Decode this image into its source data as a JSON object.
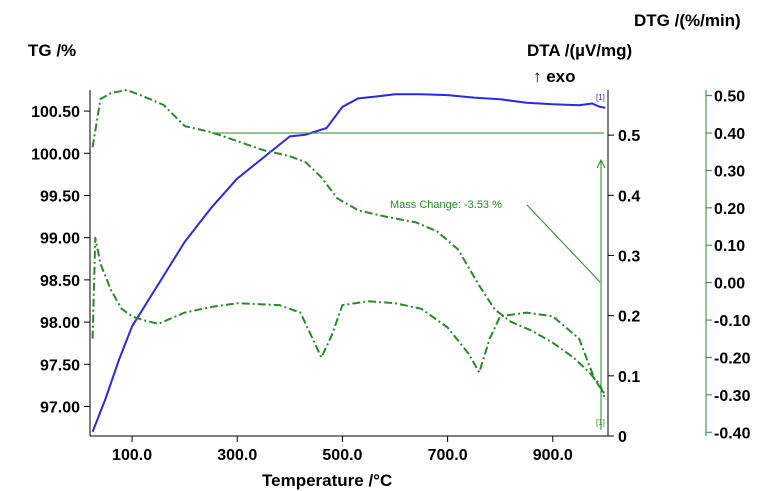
{
  "chart_data": {
    "type": "line",
    "title": "",
    "xlabel": "Temperature /°C",
    "xlim": [
      20,
      1005
    ],
    "x_ticks": [
      100,
      300,
      500,
      700,
      900
    ],
    "x_tick_labels": [
      "100.0",
      "300.0",
      "500.0",
      "700.0",
      "900.0"
    ],
    "y_axes": {
      "tg": {
        "label": "TG /%",
        "lim": [
          96.65,
          100.75
        ],
        "ticks": [
          97.0,
          97.5,
          98.0,
          98.5,
          99.0,
          99.5,
          100.0,
          100.5
        ],
        "tick_labels": [
          "97.00",
          "97.50",
          "98.00",
          "98.50",
          "99.00",
          "99.50",
          "100.00",
          "100.50"
        ]
      },
      "dta": {
        "label": "DTA /(µV/mg)",
        "label_sub": "↑ exo",
        "lim": [
          0,
          0.575
        ],
        "ticks": [
          0,
          0.1,
          0.2,
          0.3,
          0.4,
          0.5
        ],
        "tick_labels": [
          "0",
          "0.1",
          "0.2",
          "0.3",
          "0.4",
          "0.5"
        ]
      },
      "dtg": {
        "label": "DTG /(%/min)",
        "lim": [
          -0.41,
          0.515
        ],
        "ticks": [
          -0.4,
          -0.3,
          -0.2,
          -0.1,
          0.0,
          0.1,
          0.2,
          0.3,
          0.4,
          0.5
        ],
        "tick_labels": [
          "-0.40",
          "-0.30",
          "-0.20",
          "-0.10",
          "0.00",
          "0.10",
          "0.20",
          "0.30",
          "0.40",
          "0.50"
        ]
      }
    },
    "series": [
      {
        "key": "tg",
        "axis": "tg",
        "color": "#2a2ae0",
        "style": "solid",
        "points": [
          [
            25,
            96.7
          ],
          [
            50,
            97.1
          ],
          [
            75,
            97.55
          ],
          [
            100,
            97.95
          ],
          [
            150,
            98.45
          ],
          [
            200,
            98.95
          ],
          [
            250,
            99.35
          ],
          [
            300,
            99.7
          ],
          [
            350,
            99.95
          ],
          [
            400,
            100.2
          ],
          [
            430,
            100.22
          ],
          [
            470,
            100.3
          ],
          [
            500,
            100.55
          ],
          [
            530,
            100.65
          ],
          [
            560,
            100.67
          ],
          [
            600,
            100.7
          ],
          [
            650,
            100.7
          ],
          [
            700,
            100.69
          ],
          [
            750,
            100.66
          ],
          [
            800,
            100.64
          ],
          [
            850,
            100.6
          ],
          [
            900,
            100.58
          ],
          [
            950,
            100.57
          ],
          [
            975,
            100.59
          ],
          [
            990,
            100.55
          ],
          [
            1000,
            100.54
          ]
        ]
      },
      {
        "key": "dta",
        "axis": "dta",
        "color": "#2a8a2a",
        "style": "dashdot",
        "points": [
          [
            25,
            0.48
          ],
          [
            40,
            0.56
          ],
          [
            60,
            0.57
          ],
          [
            90,
            0.575
          ],
          [
            120,
            0.565
          ],
          [
            160,
            0.55
          ],
          [
            200,
            0.515
          ],
          [
            250,
            0.505
          ],
          [
            300,
            0.49
          ],
          [
            350,
            0.475
          ],
          [
            400,
            0.465
          ],
          [
            430,
            0.455
          ],
          [
            460,
            0.43
          ],
          [
            490,
            0.395
          ],
          [
            530,
            0.375
          ],
          [
            580,
            0.365
          ],
          [
            640,
            0.355
          ],
          [
            680,
            0.34
          ],
          [
            720,
            0.31
          ],
          [
            760,
            0.25
          ],
          [
            790,
            0.21
          ],
          [
            820,
            0.19
          ],
          [
            860,
            0.175
          ],
          [
            900,
            0.155
          ],
          [
            940,
            0.13
          ],
          [
            970,
            0.105
          ],
          [
            990,
            0.085
          ],
          [
            1000,
            0.06
          ]
        ]
      },
      {
        "key": "dtg",
        "axis": "dtg",
        "color": "#2a8a2a",
        "style": "dashdot",
        "points": [
          [
            25,
            -0.15
          ],
          [
            30,
            0.12
          ],
          [
            40,
            0.05
          ],
          [
            60,
            -0.02
          ],
          [
            80,
            -0.07
          ],
          [
            100,
            -0.09
          ],
          [
            120,
            -0.1
          ],
          [
            150,
            -0.11
          ],
          [
            200,
            -0.08
          ],
          [
            250,
            -0.065
          ],
          [
            300,
            -0.055
          ],
          [
            380,
            -0.06
          ],
          [
            420,
            -0.08
          ],
          [
            440,
            -0.14
          ],
          [
            460,
            -0.2
          ],
          [
            480,
            -0.14
          ],
          [
            500,
            -0.06
          ],
          [
            550,
            -0.05
          ],
          [
            600,
            -0.055
          ],
          [
            650,
            -0.07
          ],
          [
            700,
            -0.12
          ],
          [
            740,
            -0.19
          ],
          [
            760,
            -0.24
          ],
          [
            780,
            -0.15
          ],
          [
            800,
            -0.09
          ],
          [
            850,
            -0.08
          ],
          [
            900,
            -0.09
          ],
          [
            950,
            -0.15
          ],
          [
            980,
            -0.26
          ],
          [
            1000,
            -0.3
          ]
        ]
      }
    ],
    "annotations": {
      "mass_change": "Mass Change: -3.53 %",
      "marker_top": "[1]",
      "marker_bottom": "[1]"
    },
    "grid": false,
    "legend": "none"
  }
}
